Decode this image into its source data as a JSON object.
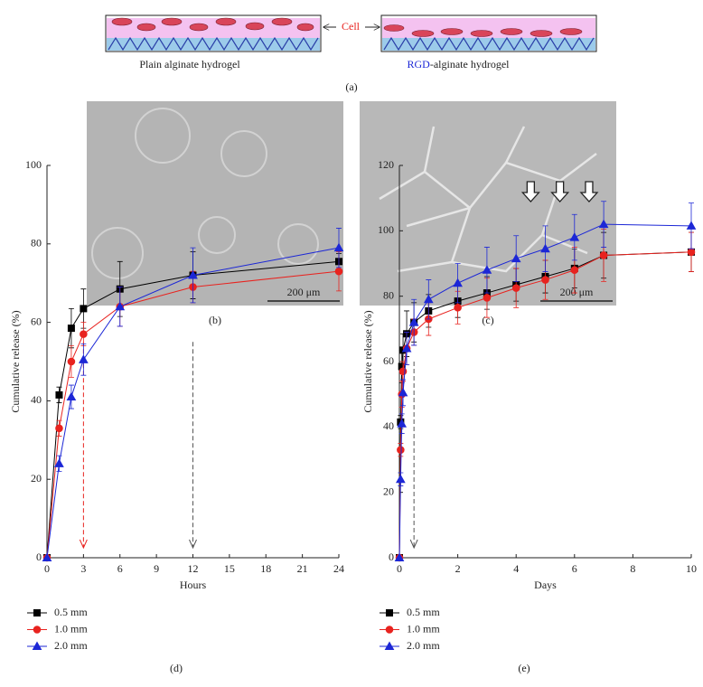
{
  "figure": {
    "panel_a": {
      "left_label": "Plain alginate hydrogel",
      "right_label_rgd": "RGD",
      "right_label_rest": "-alginate hydrogel",
      "cell_label": "Cell",
      "caption": "(a)"
    },
    "panel_b": {
      "scale": "200 μm",
      "caption": "(b)"
    },
    "panel_c": {
      "scale": "200 μm",
      "caption": "(c)"
    }
  },
  "chart_data": [
    {
      "type": "line",
      "caption": "(d)",
      "x_label": "Hours",
      "y_label": "Cumulative release (%)",
      "x": [
        0,
        1,
        2,
        3,
        6,
        12,
        24
      ],
      "series": [
        {
          "name": "0.5 mm",
          "color": "#000000",
          "marker": "square",
          "values": [
            0,
            41.5,
            58.5,
            63.5,
            68.5,
            72,
            75.5
          ],
          "errors": [
            0,
            2,
            5,
            5,
            7,
            6,
            2
          ]
        },
        {
          "name": "1.0 mm",
          "color": "#e8231f",
          "marker": "circle",
          "values": [
            0,
            33,
            50,
            57,
            64,
            69,
            73
          ],
          "errors": [
            0,
            2,
            4,
            3,
            5,
            4,
            5
          ]
        },
        {
          "name": "2.0 mm",
          "color": "#1c27d6",
          "marker": "triangle",
          "values": [
            0,
            24,
            41,
            50.5,
            64,
            72,
            79
          ],
          "errors": [
            0,
            2,
            3,
            4,
            5,
            7,
            5
          ]
        }
      ],
      "arrows": [
        {
          "x": 3,
          "color": "#e8231f"
        },
        {
          "x": 12,
          "color": "#555555"
        }
      ],
      "xlim": [
        0,
        24
      ],
      "xticks": [
        0,
        3,
        6,
        9,
        12,
        15,
        18,
        21,
        24
      ],
      "ylim": [
        0,
        100
      ],
      "yticks": [
        0,
        20,
        40,
        60,
        80,
        100
      ],
      "legend": "below"
    },
    {
      "type": "line",
      "caption": "(e)",
      "x_label": "Days",
      "y_label": "Cumulative release (%)",
      "x": [
        0,
        0.042,
        0.083,
        0.125,
        0.25,
        0.5,
        1,
        2,
        3,
        4,
        5,
        6,
        7,
        10
      ],
      "series": [
        {
          "name": "0.5 mm",
          "color": "#000000",
          "marker": "square",
          "values": [
            0,
            41.5,
            58.5,
            63.5,
            68.5,
            72,
            75.5,
            78.5,
            81,
            83.5,
            86,
            88.5,
            92.5,
            93.5
          ],
          "errors": [
            0,
            2,
            5,
            5,
            7,
            6,
            5,
            5,
            5,
            5,
            5,
            6,
            7,
            6
          ]
        },
        {
          "name": "1.0 mm",
          "color": "#e8231f",
          "marker": "circle",
          "values": [
            0,
            33,
            50,
            57,
            64,
            69,
            73,
            76.5,
            79.5,
            82.5,
            85,
            88,
            92.5,
            93.5
          ],
          "errors": [
            0,
            2,
            4,
            3,
            5,
            4,
            5,
            5,
            6,
            6,
            6,
            7,
            8,
            6
          ]
        },
        {
          "name": "2.0 mm",
          "color": "#1c27d6",
          "marker": "triangle",
          "values": [
            0,
            24,
            41,
            50.5,
            64,
            72,
            79,
            84,
            88,
            91.5,
            94.5,
            98,
            102,
            101.5
          ],
          "errors": [
            0,
            2,
            3,
            4,
            5,
            7,
            6,
            6,
            7,
            7,
            7,
            7,
            7,
            7
          ]
        }
      ],
      "arrows": [
        {
          "x": 0.5,
          "color": "#555555"
        }
      ],
      "block_arrows": [
        4.5,
        5.5,
        6.5
      ],
      "xlim": [
        0,
        10
      ],
      "xticks": [
        0,
        2,
        4,
        6,
        8,
        10
      ],
      "ylim": [
        0,
        120
      ],
      "yticks": [
        0,
        20,
        40,
        60,
        80,
        100,
        120
      ],
      "legend": "below"
    }
  ]
}
